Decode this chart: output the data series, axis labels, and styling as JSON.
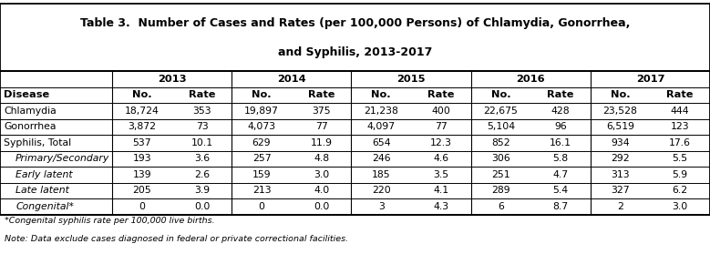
{
  "title_line1": "Table 3.  Number of Cases and Rates (per 100,000 Persons) of Chlamydia, Gonorrhea,",
  "title_line2": "and Syphilis, 2013-2017",
  "years": [
    "2013",
    "2014",
    "2015",
    "2016",
    "2017"
  ],
  "col_headers": [
    "No.",
    "Rate",
    "No.",
    "Rate",
    "No.",
    "Rate",
    "No.",
    "Rate",
    "No.",
    "Rate"
  ],
  "row_labels": [
    "Disease",
    "Chlamydia",
    "Gonorrhea",
    "Syphilis, Total",
    "Primary/Secondary",
    "Early latent",
    "Late latent",
    "Congenital*"
  ],
  "indented_rows": [
    "Primary/Secondary",
    "Early latent",
    "Late latent",
    "Congenital*"
  ],
  "data": [
    [
      "18,724",
      "353",
      "19,897",
      "375",
      "21,238",
      "400",
      "22,675",
      "428",
      "23,528",
      "444"
    ],
    [
      "3,872",
      "73",
      "4,073",
      "77",
      "4,097",
      "77",
      "5,104",
      "96",
      "6,519",
      "123"
    ],
    [
      "537",
      "10.1",
      "629",
      "11.9",
      "654",
      "12.3",
      "852",
      "16.1",
      "934",
      "17.6"
    ],
    [
      "193",
      "3.6",
      "257",
      "4.8",
      "246",
      "4.6",
      "306",
      "5.8",
      "292",
      "5.5"
    ],
    [
      "139",
      "2.6",
      "159",
      "3.0",
      "185",
      "3.5",
      "251",
      "4.7",
      "313",
      "5.9"
    ],
    [
      "205",
      "3.9",
      "213",
      "4.0",
      "220",
      "4.1",
      "289",
      "5.4",
      "327",
      "6.2"
    ],
    [
      "0",
      "0.0",
      "0",
      "0.0",
      "3",
      "4.3",
      "6",
      "8.7",
      "2",
      "3.0"
    ]
  ],
  "footnotes": [
    "*Congenital syphilis rate per 100,000 live births.",
    "Note: Data exclude cases diagnosed in federal or private correctional facilities."
  ],
  "background_color": "#ffffff",
  "border_color": "#000000",
  "title_fontsize": 9.0,
  "cell_fontsize": 7.8,
  "header_fontsize": 8.2,
  "footnote_fontsize": 6.8
}
